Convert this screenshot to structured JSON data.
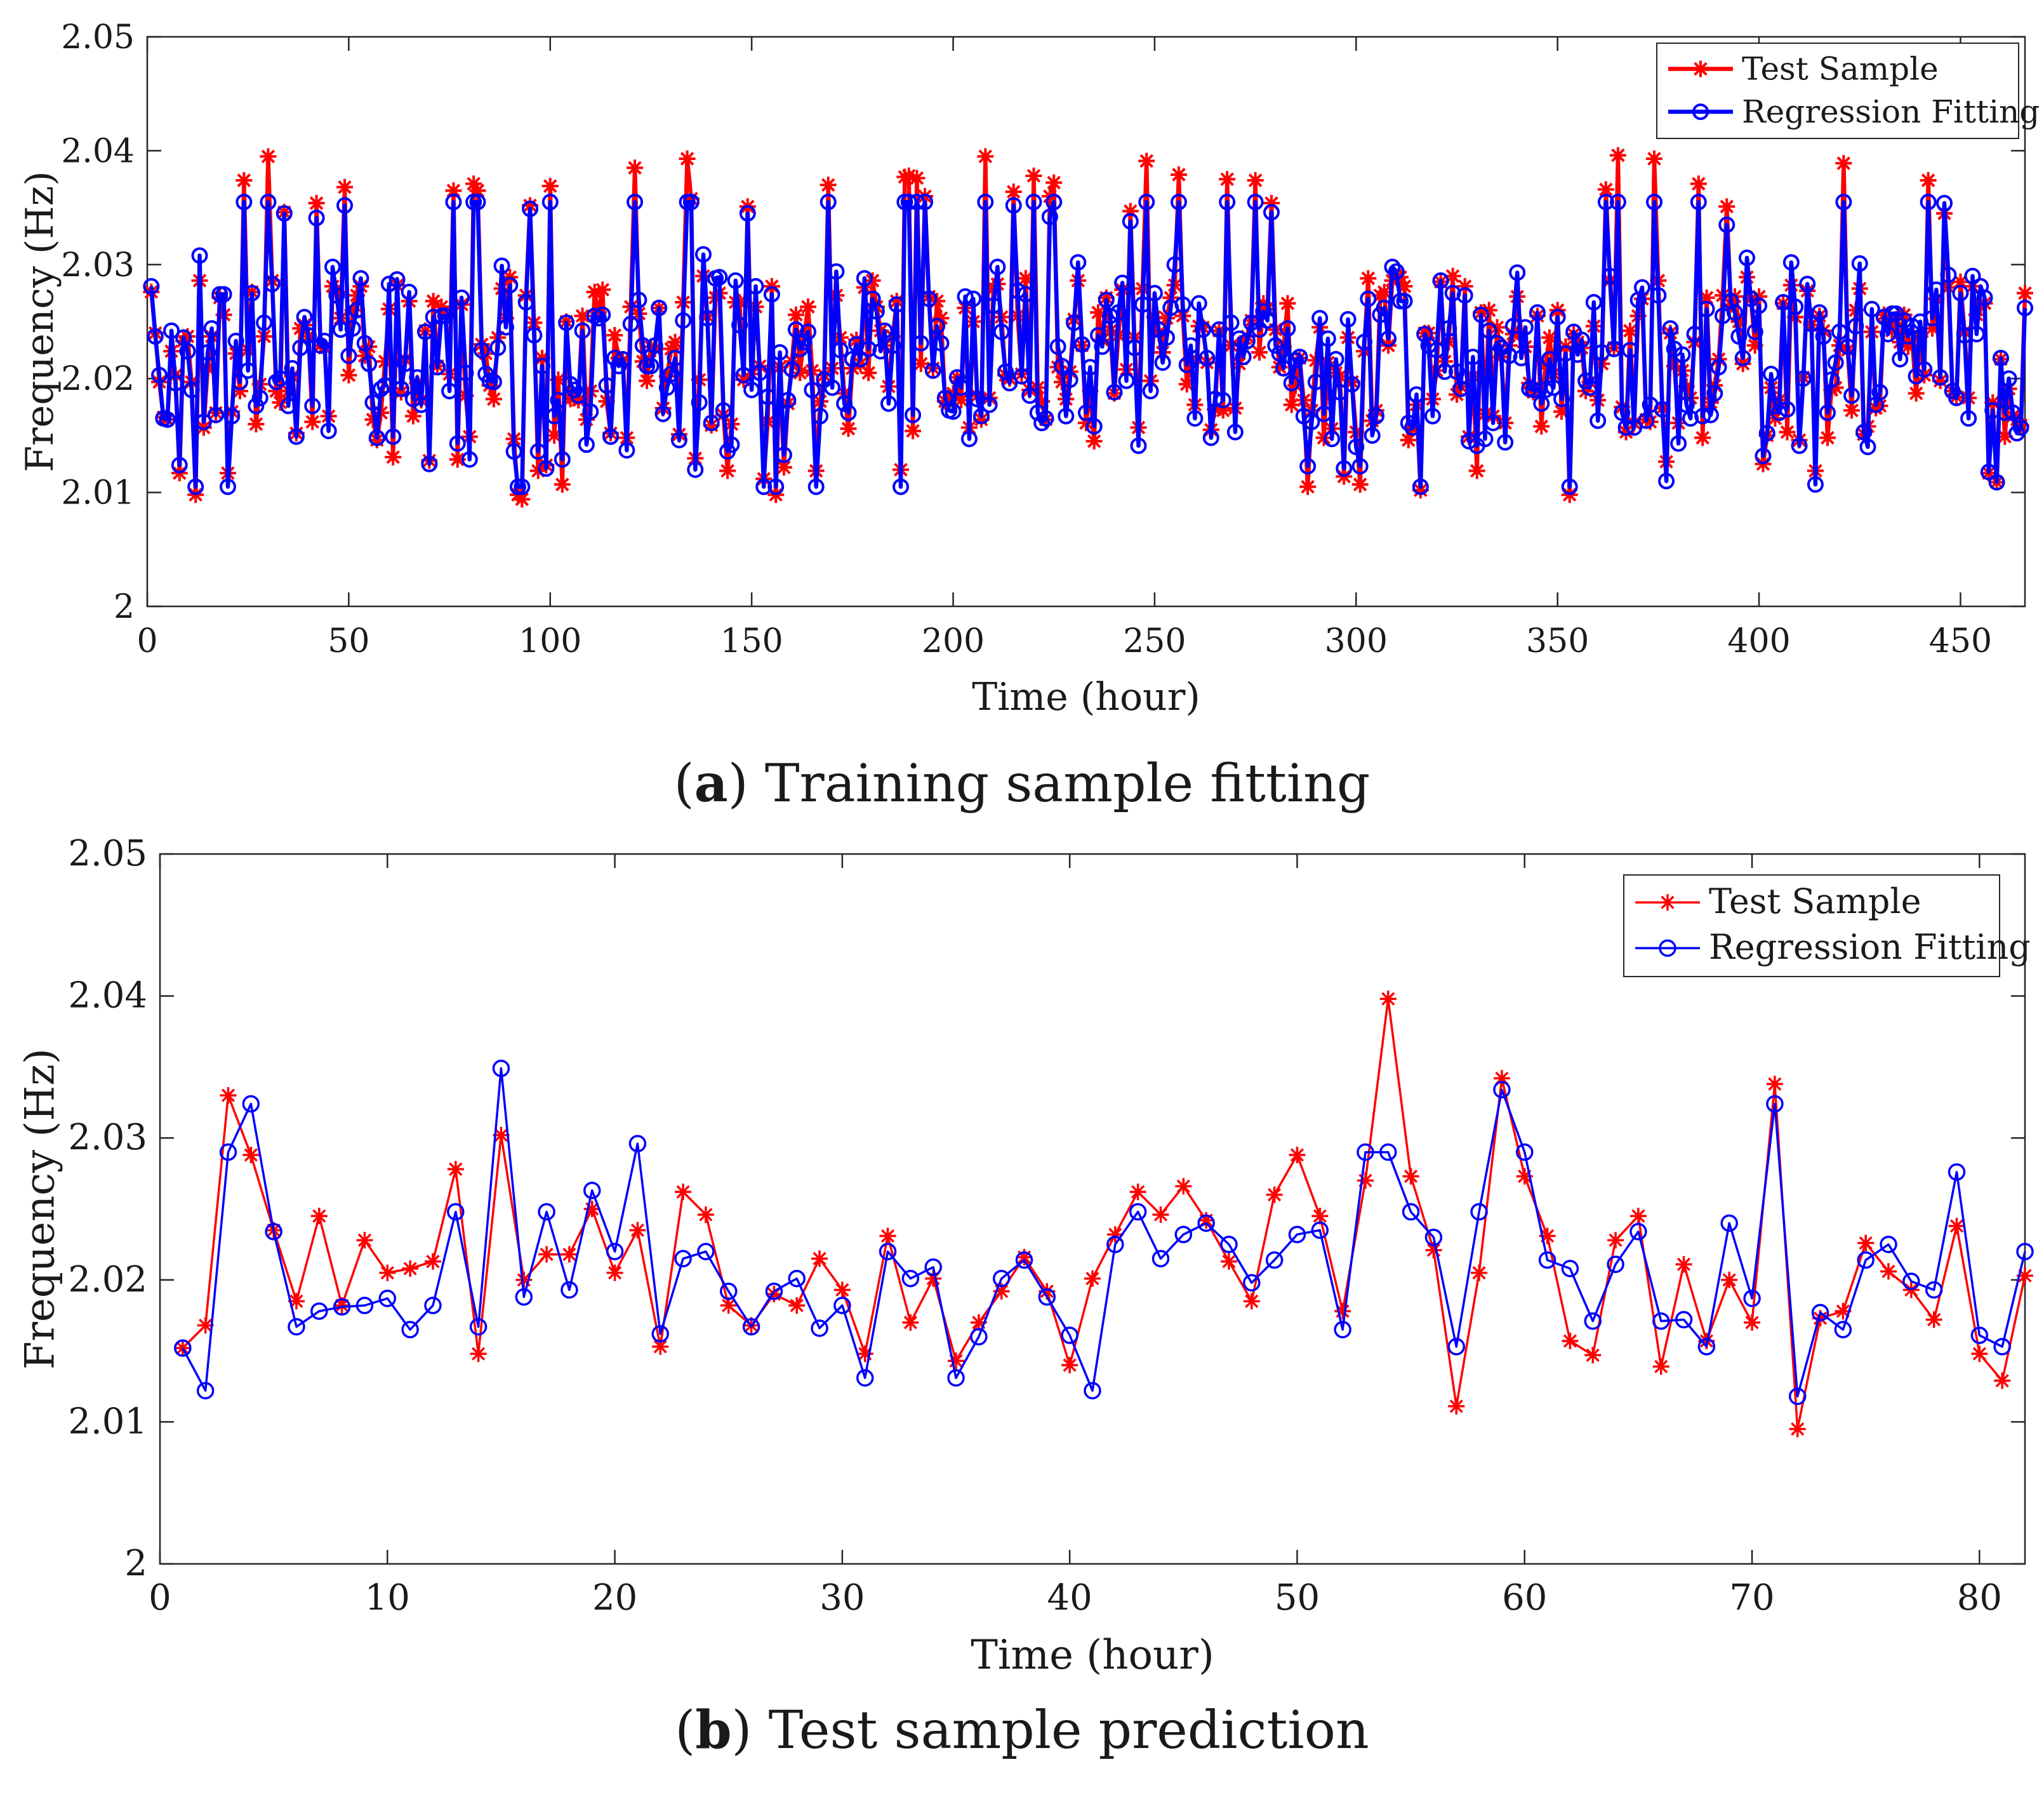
{
  "chart_data": [
    {
      "type": "line",
      "caption_tag": "a",
      "caption_text": "Training sample fitting",
      "xlabel": "Time (hour)",
      "ylabel": "Frequency (Hz)",
      "xlim": [
        0,
        466
      ],
      "ylim": [
        2.0,
        2.05
      ],
      "xticks": [
        "0",
        "50",
        "100",
        "150",
        "200",
        "250",
        "300",
        "350",
        "400",
        "450"
      ],
      "yticks": [
        "2",
        "2.01",
        "2.02",
        "2.03",
        "2.04",
        "2.05"
      ],
      "legend": "top-right",
      "n_points": 466,
      "seed": 20240611,
      "series": [
        {
          "name": "Test Sample",
          "color": "#ff0000",
          "marker": "asterisk",
          "values": []
        },
        {
          "name": "Regression Fitting",
          "color": "#0000ff",
          "marker": "circle",
          "values": []
        }
      ]
    },
    {
      "type": "line",
      "caption_tag": "b",
      "caption_text": "Test sample prediction",
      "xlabel": "Time (hour)",
      "ylabel": "Frequency (Hz)",
      "xlim": [
        0,
        82
      ],
      "ylim": [
        2.0,
        2.05
      ],
      "xticks": [
        "0",
        "10",
        "20",
        "30",
        "40",
        "50",
        "60",
        "70",
        "80"
      ],
      "yticks": [
        "2",
        "2.01",
        "2.02",
        "2.03",
        "2.04",
        "2.05"
      ],
      "legend": "top-right",
      "x": [
        1,
        2,
        3,
        4,
        5,
        6,
        7,
        8,
        9,
        10,
        11,
        12,
        13,
        14,
        15,
        16,
        17,
        18,
        19,
        20,
        21,
        22,
        23,
        24,
        25,
        26,
        27,
        28,
        29,
        30,
        31,
        32,
        33,
        34,
        35,
        36,
        37,
        38,
        39,
        40,
        41,
        42,
        43,
        44,
        45,
        46,
        47,
        48,
        49,
        50,
        51,
        52,
        53,
        54,
        55,
        56,
        57,
        58,
        59,
        60,
        61,
        62,
        63,
        64,
        65,
        66,
        67,
        68,
        69,
        70,
        71,
        72,
        73,
        74,
        75,
        76,
        77,
        78,
        79,
        80,
        81,
        82
      ],
      "series": [
        {
          "name": "Test Sample",
          "color": "#ff0000",
          "marker": "asterisk",
          "values": [
            2.0152,
            2.0168,
            2.033,
            2.0288,
            2.0235,
            2.0185,
            2.0245,
            2.0182,
            2.0228,
            2.0205,
            2.0208,
            2.0213,
            2.0278,
            2.0148,
            2.0302,
            2.02,
            2.0218,
            2.0218,
            2.025,
            2.0205,
            2.0235,
            2.0153,
            2.0262,
            2.0246,
            2.0182,
            2.0168,
            2.019,
            2.0182,
            2.0215,
            2.0193,
            2.0148,
            2.0231,
            2.017,
            2.0201,
            2.0143,
            2.017,
            2.0192,
            2.0216,
            2.0192,
            2.014,
            2.0201,
            2.0232,
            2.0262,
            2.0246,
            2.0266,
            2.0242,
            2.0213,
            2.0185,
            2.026,
            2.0288,
            2.0245,
            2.0178,
            2.027,
            2.0398,
            2.0273,
            2.0221,
            2.0111,
            2.0205,
            2.0342,
            2.0273,
            2.0231,
            2.0157,
            2.0147,
            2.0228,
            2.0245,
            2.0139,
            2.0211,
            2.0157,
            2.02,
            2.017,
            2.0338,
            2.0095,
            2.0173,
            2.0178,
            2.0226,
            2.0206,
            2.0193,
            2.0172,
            2.0238,
            2.0148,
            2.0129,
            2.0203
          ]
        },
        {
          "name": "Regression Fitting",
          "color": "#0000ff",
          "marker": "circle",
          "values": [
            2.0152,
            2.0122,
            2.029,
            2.0324,
            2.0234,
            2.0167,
            2.0178,
            2.0181,
            2.0182,
            2.0187,
            2.0165,
            2.0182,
            2.0248,
            2.0167,
            2.0349,
            2.0188,
            2.0248,
            2.0193,
            2.0263,
            2.022,
            2.0296,
            2.0162,
            2.0215,
            2.022,
            2.0192,
            2.0167,
            2.0192,
            2.0201,
            2.0166,
            2.0182,
            2.0131,
            2.022,
            2.0201,
            2.0209,
            2.0131,
            2.016,
            2.0201,
            2.0214,
            2.0188,
            2.0161,
            2.0122,
            2.0225,
            2.0248,
            2.0215,
            2.0232,
            2.024,
            2.0225,
            2.0198,
            2.0214,
            2.0232,
            2.0235,
            2.0165,
            2.029,
            2.029,
            2.0248,
            2.023,
            2.0153,
            2.0248,
            2.0334,
            2.029,
            2.0214,
            2.0208,
            2.0171,
            2.0211,
            2.0234,
            2.0171,
            2.0172,
            2.0153,
            2.024,
            2.0187,
            2.0324,
            2.0118,
            2.0177,
            2.0165,
            2.0214,
            2.0225,
            2.0199,
            2.0193,
            2.0276,
            2.0161,
            2.0153,
            2.022
          ]
        }
      ]
    }
  ]
}
